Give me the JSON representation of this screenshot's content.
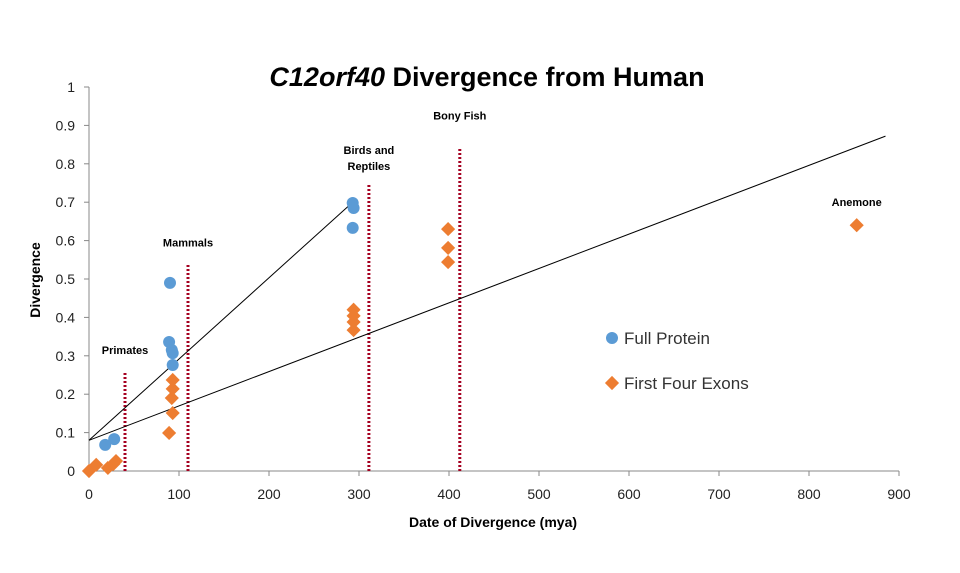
{
  "chart_data": {
    "type": "scatter",
    "title_italic": "C12orf40",
    "title_rest": " Divergence from Human",
    "xlabel": "Date of Divergence (mya)",
    "ylabel": "Divergence",
    "xlim": [
      0,
      900
    ],
    "ylim": [
      0,
      1
    ],
    "xticks": [
      0,
      100,
      200,
      300,
      400,
      500,
      600,
      700,
      800,
      900
    ],
    "yticks": [
      0,
      0.1,
      0.2,
      0.3,
      0.4,
      0.5,
      0.6,
      0.7,
      0.8,
      0.9,
      1
    ],
    "grid": false,
    "legend_position": "right",
    "series": [
      {
        "name": "Full Protein",
        "marker": "circle",
        "color": "#5b9bd5",
        "points": [
          [
            18,
            0.068
          ],
          [
            28,
            0.083
          ],
          [
            90,
            0.49
          ],
          [
            89,
            0.336
          ],
          [
            92,
            0.315
          ],
          [
            93,
            0.307
          ],
          [
            93,
            0.276
          ],
          [
            293,
            0.698
          ],
          [
            294,
            0.685
          ],
          [
            293,
            0.633
          ]
        ]
      },
      {
        "name": "First Four Exons",
        "marker": "diamond",
        "color": "#ed7d31",
        "points": [
          [
            0,
            0
          ],
          [
            8,
            0.016
          ],
          [
            21,
            0.008
          ],
          [
            27,
            0.018
          ],
          [
            30,
            0.026
          ],
          [
            89,
            0.099
          ],
          [
            93,
            0.151
          ],
          [
            92,
            0.19
          ],
          [
            93,
            0.214
          ],
          [
            93,
            0.237
          ],
          [
            294,
            0.42
          ],
          [
            294,
            0.404
          ],
          [
            294,
            0.388
          ],
          [
            294,
            0.367
          ],
          [
            399,
            0.63
          ],
          [
            399,
            0.581
          ],
          [
            399,
            0.544
          ],
          [
            853,
            0.64
          ]
        ]
      }
    ],
    "trendlines": [
      {
        "from": [
          0,
          0.08
        ],
        "to": [
          293,
          0.7
        ]
      },
      {
        "from": [
          0,
          0.08
        ],
        "to": [
          885,
          0.872
        ]
      }
    ],
    "dividers": [
      {
        "x": 40,
        "top": 0.258,
        "label": "Primates",
        "label_y": 0.305
      },
      {
        "x": 110,
        "top": 0.54,
        "label": "Mammals",
        "label_y": 0.585
      },
      {
        "x": 311,
        "top": 0.75,
        "label": "Birds and",
        "label2": "Reptiles",
        "label_y": 0.825
      },
      {
        "x": 412,
        "top": 0.84,
        "label": "Bony Fish",
        "label_y": 0.915
      }
    ],
    "annotations": [
      {
        "text": "Anemone",
        "x": 853,
        "y": 0.7
      }
    ],
    "divider_color": "#a50021"
  }
}
